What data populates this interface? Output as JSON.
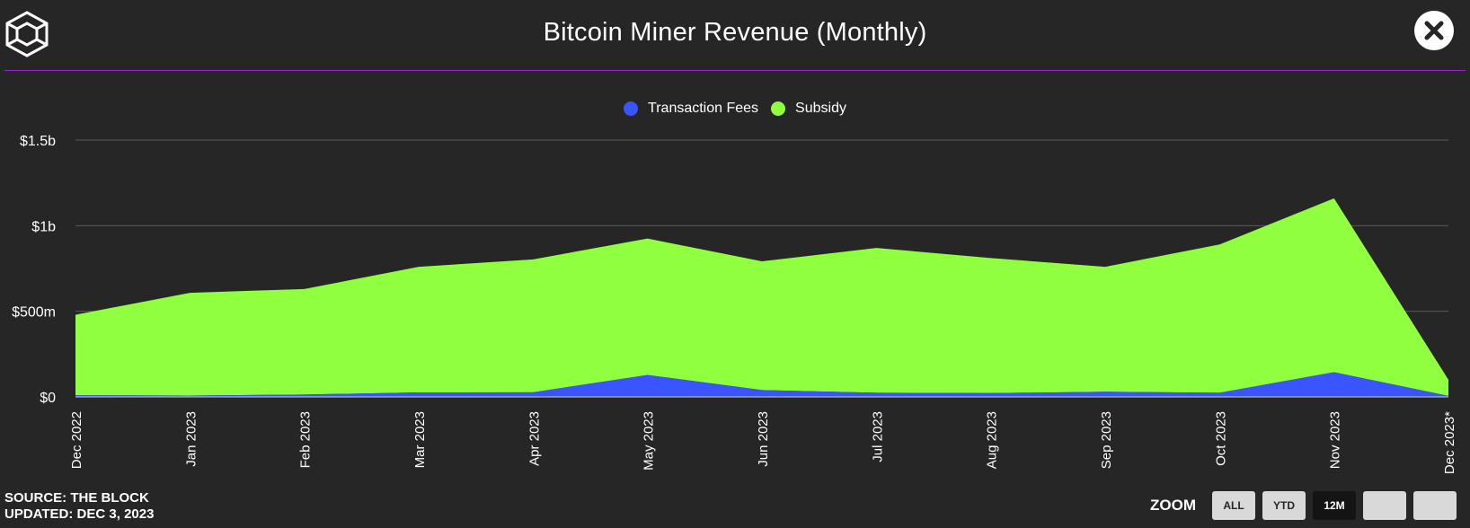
{
  "header": {
    "title": "Bitcoin Miner Revenue (Monthly)"
  },
  "legend": [
    {
      "name": "Transaction Fees",
      "color": "#3a54ff"
    },
    {
      "name": "Subsidy",
      "color": "#8fff3f"
    }
  ],
  "footer": {
    "source": "SOURCE: THE BLOCK",
    "updated": "UPDATED: DEC 3, 2023"
  },
  "zoom": {
    "label": "ZOOM",
    "buttons": [
      "ALL",
      "YTD",
      "12M",
      "",
      ""
    ],
    "active": "12M"
  },
  "chart_data": {
    "type": "area",
    "stacked": true,
    "categories": [
      "Dec 2022",
      "Jan 2023",
      "Feb 2023",
      "Mar 2023",
      "Apr 2023",
      "May 2023",
      "Jun 2023",
      "Jul 2023",
      "Aug 2023",
      "Sep 2023",
      "Oct 2023",
      "Nov 2023",
      "Dec 2023*"
    ],
    "series": [
      {
        "name": "Transaction Fees",
        "color": "#3a54ff",
        "values": [
          10,
          8,
          14,
          26,
          27,
          128,
          40,
          24,
          22,
          30,
          24,
          144,
          6
        ]
      },
      {
        "name": "Subsidy",
        "color": "#8fff3f",
        "values": [
          470,
          600,
          616,
          734,
          776,
          797,
          752,
          846,
          789,
          730,
          866,
          1016,
          94
        ]
      }
    ],
    "ylim": [
      0,
      1500
    ],
    "yticks": [
      {
        "value": 0,
        "label": "$0"
      },
      {
        "value": 500,
        "label": "$500m"
      },
      {
        "value": 1000,
        "label": "$1b"
      },
      {
        "value": 1500,
        "label": "$1.5b"
      }
    ],
    "grid": true,
    "legend_position": "top-center"
  }
}
